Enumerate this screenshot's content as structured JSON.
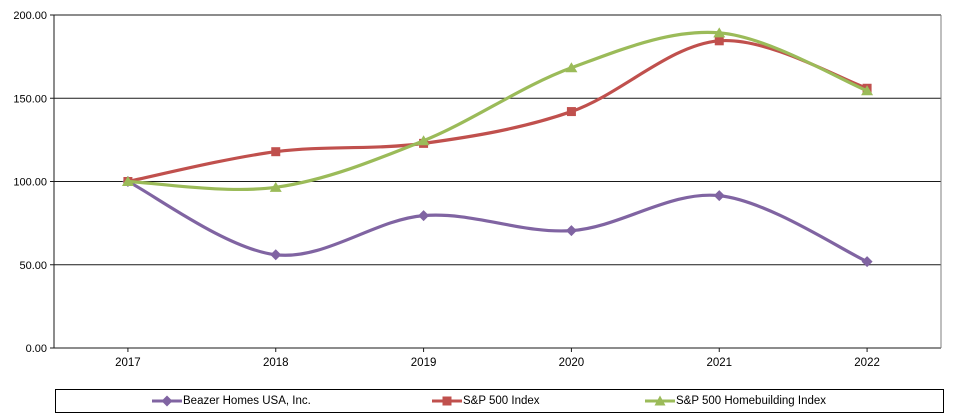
{
  "chart_data": {
    "type": "line",
    "title": "",
    "xlabel": "",
    "ylabel": "",
    "categories": [
      "2017",
      "2018",
      "2019",
      "2020",
      "2021",
      "2022"
    ],
    "series": [
      {
        "name": "Beazer Homes USA, Inc.",
        "color": "#8064A2",
        "marker": "diamond",
        "values": [
          100.0,
          56.0,
          79.5,
          70.5,
          91.5,
          51.9
        ]
      },
      {
        "name": "S&P 500 Index",
        "color": "#C0504D",
        "marker": "square",
        "values": [
          100.0,
          117.9,
          122.9,
          142.0,
          184.5,
          156.0
        ]
      },
      {
        "name": "S&P 500 Homebuilding Index",
        "color": "#9BBB59",
        "marker": "triangle",
        "values": [
          100.0,
          96.5,
          124.5,
          168.3,
          189.3,
          154.5
        ]
      }
    ],
    "ylim": [
      0,
      200
    ],
    "y_ticks": [
      {
        "value": 0,
        "label": "0.00"
      },
      {
        "value": 50,
        "label": "50.00"
      },
      {
        "value": 100,
        "label": "100.00"
      },
      {
        "value": 150,
        "label": "150.00"
      },
      {
        "value": 200,
        "label": "200.00"
      }
    ],
    "grid": true,
    "smooth_lines": true,
    "legend_position": "bottom",
    "grid_color": "#1a1a1a",
    "axis_color": "#1a1a1a",
    "plot_border_right_color": "#7f7f7f",
    "background_color": "#ffffff"
  }
}
